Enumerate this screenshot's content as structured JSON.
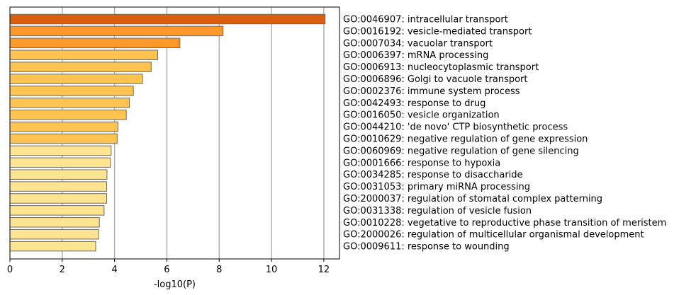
{
  "chart_data": {
    "type": "bar",
    "orientation": "horizontal",
    "xlabel": "-log10(P)",
    "ylabel": "",
    "title": "",
    "xlim": [
      0,
      12.6
    ],
    "xticks": [
      "0",
      "2",
      "4",
      "6",
      "8",
      "10",
      "12"
    ],
    "grid": "vertical",
    "categories": [
      "GO:0046907: intracellular transport",
      "GO:0016192: vesicle-mediated transport",
      "GO:0007034: vacuolar transport",
      "GO:0006397: mRNA processing",
      "GO:0006913: nucleocytoplasmic transport",
      "GO:0006896: Golgi to vacuole transport",
      "GO:0002376: immune system process",
      "GO:0042493: response to drug",
      "GO:0016050: vesicle organization",
      "GO:0044210: 'de novo' CTP biosynthetic process",
      "GO:0010629: negative regulation of gene expression",
      "GO:0060969: negative regulation of gene silencing",
      "GO:0001666: response to hypoxia",
      "GO:0034285: response to disaccharide",
      "GO:0031053: primary miRNA processing",
      "GO:2000037: regulation of stomatal complex patterning",
      "GO:0031338: regulation of vesicle fusion",
      "GO:0010228: vegetative to reproductive phase transition of meristem",
      "GO:2000026: regulation of multicellular organismal development",
      "GO:0009611: response to wounding"
    ],
    "values": [
      12.05,
      8.15,
      6.5,
      5.65,
      5.4,
      5.07,
      4.72,
      4.57,
      4.45,
      4.13,
      4.1,
      3.87,
      3.84,
      3.71,
      3.7,
      3.7,
      3.6,
      3.42,
      3.39,
      3.28
    ],
    "colors": [
      "#d95f0e",
      "#fe9929",
      "#fe9929",
      "#fec44f",
      "#fec44f",
      "#fec44f",
      "#fec44f",
      "#fec44f",
      "#fec44f",
      "#fec44f",
      "#fec44f",
      "#fee391",
      "#fee391",
      "#fee391",
      "#fee391",
      "#fee391",
      "#fee391",
      "#fee391",
      "#fee391",
      "#fee391"
    ]
  }
}
